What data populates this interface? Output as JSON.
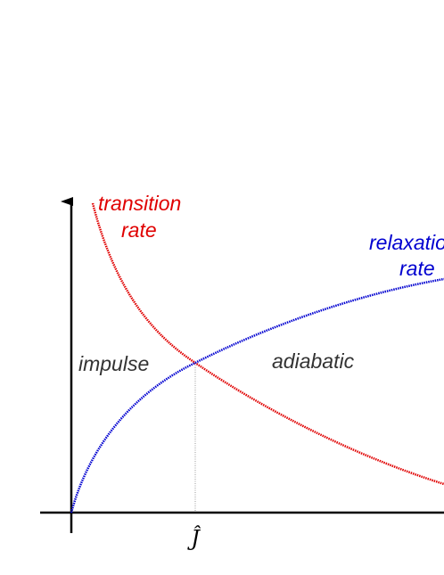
{
  "curves": [
    {
      "label_lines": [
        "transition",
        "rate"
      ]
    },
    {
      "label_lines": [
        "relaxation",
        "rate"
      ]
    }
  ],
  "regions": [
    "impulse",
    "adiabatic"
  ],
  "x_axis": {
    "marker": "Ĵ"
  }
}
